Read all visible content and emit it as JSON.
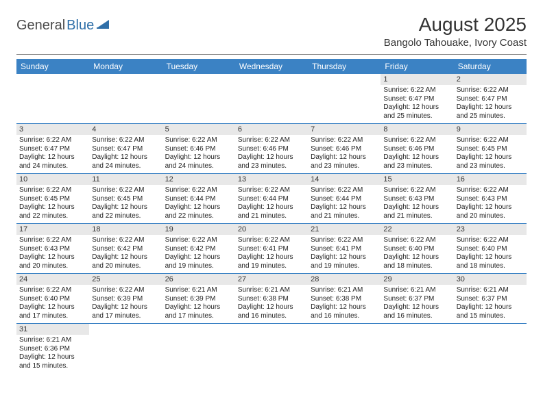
{
  "logo": {
    "general": "General",
    "blue": "Blue"
  },
  "title": "August 2025",
  "subtitle": "Bangolo Tahouake, Ivory Coast",
  "colors": {
    "header_bg": "#3b82c4",
    "header_fg": "#ffffff",
    "daynum_bg": "#e8e8e8",
    "row_border": "#3b82c4",
    "logo_blue": "#2f6fa8"
  },
  "daysOfWeek": [
    "Sunday",
    "Monday",
    "Tuesday",
    "Wednesday",
    "Thursday",
    "Friday",
    "Saturday"
  ],
  "weeks": [
    [
      {
        "n": "",
        "lines": []
      },
      {
        "n": "",
        "lines": []
      },
      {
        "n": "",
        "lines": []
      },
      {
        "n": "",
        "lines": []
      },
      {
        "n": "",
        "lines": []
      },
      {
        "n": "1",
        "lines": [
          "Sunrise: 6:22 AM",
          "Sunset: 6:47 PM",
          "Daylight: 12 hours and 25 minutes."
        ]
      },
      {
        "n": "2",
        "lines": [
          "Sunrise: 6:22 AM",
          "Sunset: 6:47 PM",
          "Daylight: 12 hours and 25 minutes."
        ]
      }
    ],
    [
      {
        "n": "3",
        "lines": [
          "Sunrise: 6:22 AM",
          "Sunset: 6:47 PM",
          "Daylight: 12 hours and 24 minutes."
        ]
      },
      {
        "n": "4",
        "lines": [
          "Sunrise: 6:22 AM",
          "Sunset: 6:47 PM",
          "Daylight: 12 hours and 24 minutes."
        ]
      },
      {
        "n": "5",
        "lines": [
          "Sunrise: 6:22 AM",
          "Sunset: 6:46 PM",
          "Daylight: 12 hours and 24 minutes."
        ]
      },
      {
        "n": "6",
        "lines": [
          "Sunrise: 6:22 AM",
          "Sunset: 6:46 PM",
          "Daylight: 12 hours and 23 minutes."
        ]
      },
      {
        "n": "7",
        "lines": [
          "Sunrise: 6:22 AM",
          "Sunset: 6:46 PM",
          "Daylight: 12 hours and 23 minutes."
        ]
      },
      {
        "n": "8",
        "lines": [
          "Sunrise: 6:22 AM",
          "Sunset: 6:46 PM",
          "Daylight: 12 hours and 23 minutes."
        ]
      },
      {
        "n": "9",
        "lines": [
          "Sunrise: 6:22 AM",
          "Sunset: 6:45 PM",
          "Daylight: 12 hours and 23 minutes."
        ]
      }
    ],
    [
      {
        "n": "10",
        "lines": [
          "Sunrise: 6:22 AM",
          "Sunset: 6:45 PM",
          "Daylight: 12 hours and 22 minutes."
        ]
      },
      {
        "n": "11",
        "lines": [
          "Sunrise: 6:22 AM",
          "Sunset: 6:45 PM",
          "Daylight: 12 hours and 22 minutes."
        ]
      },
      {
        "n": "12",
        "lines": [
          "Sunrise: 6:22 AM",
          "Sunset: 6:44 PM",
          "Daylight: 12 hours and 22 minutes."
        ]
      },
      {
        "n": "13",
        "lines": [
          "Sunrise: 6:22 AM",
          "Sunset: 6:44 PM",
          "Daylight: 12 hours and 21 minutes."
        ]
      },
      {
        "n": "14",
        "lines": [
          "Sunrise: 6:22 AM",
          "Sunset: 6:44 PM",
          "Daylight: 12 hours and 21 minutes."
        ]
      },
      {
        "n": "15",
        "lines": [
          "Sunrise: 6:22 AM",
          "Sunset: 6:43 PM",
          "Daylight: 12 hours and 21 minutes."
        ]
      },
      {
        "n": "16",
        "lines": [
          "Sunrise: 6:22 AM",
          "Sunset: 6:43 PM",
          "Daylight: 12 hours and 20 minutes."
        ]
      }
    ],
    [
      {
        "n": "17",
        "lines": [
          "Sunrise: 6:22 AM",
          "Sunset: 6:43 PM",
          "Daylight: 12 hours and 20 minutes."
        ]
      },
      {
        "n": "18",
        "lines": [
          "Sunrise: 6:22 AM",
          "Sunset: 6:42 PM",
          "Daylight: 12 hours and 20 minutes."
        ]
      },
      {
        "n": "19",
        "lines": [
          "Sunrise: 6:22 AM",
          "Sunset: 6:42 PM",
          "Daylight: 12 hours and 19 minutes."
        ]
      },
      {
        "n": "20",
        "lines": [
          "Sunrise: 6:22 AM",
          "Sunset: 6:41 PM",
          "Daylight: 12 hours and 19 minutes."
        ]
      },
      {
        "n": "21",
        "lines": [
          "Sunrise: 6:22 AM",
          "Sunset: 6:41 PM",
          "Daylight: 12 hours and 19 minutes."
        ]
      },
      {
        "n": "22",
        "lines": [
          "Sunrise: 6:22 AM",
          "Sunset: 6:40 PM",
          "Daylight: 12 hours and 18 minutes."
        ]
      },
      {
        "n": "23",
        "lines": [
          "Sunrise: 6:22 AM",
          "Sunset: 6:40 PM",
          "Daylight: 12 hours and 18 minutes."
        ]
      }
    ],
    [
      {
        "n": "24",
        "lines": [
          "Sunrise: 6:22 AM",
          "Sunset: 6:40 PM",
          "Daylight: 12 hours and 17 minutes."
        ]
      },
      {
        "n": "25",
        "lines": [
          "Sunrise: 6:22 AM",
          "Sunset: 6:39 PM",
          "Daylight: 12 hours and 17 minutes."
        ]
      },
      {
        "n": "26",
        "lines": [
          "Sunrise: 6:21 AM",
          "Sunset: 6:39 PM",
          "Daylight: 12 hours and 17 minutes."
        ]
      },
      {
        "n": "27",
        "lines": [
          "Sunrise: 6:21 AM",
          "Sunset: 6:38 PM",
          "Daylight: 12 hours and 16 minutes."
        ]
      },
      {
        "n": "28",
        "lines": [
          "Sunrise: 6:21 AM",
          "Sunset: 6:38 PM",
          "Daylight: 12 hours and 16 minutes."
        ]
      },
      {
        "n": "29",
        "lines": [
          "Sunrise: 6:21 AM",
          "Sunset: 6:37 PM",
          "Daylight: 12 hours and 16 minutes."
        ]
      },
      {
        "n": "30",
        "lines": [
          "Sunrise: 6:21 AM",
          "Sunset: 6:37 PM",
          "Daylight: 12 hours and 15 minutes."
        ]
      }
    ],
    [
      {
        "n": "31",
        "lines": [
          "Sunrise: 6:21 AM",
          "Sunset: 6:36 PM",
          "Daylight: 12 hours and 15 minutes."
        ]
      },
      {
        "n": "",
        "lines": []
      },
      {
        "n": "",
        "lines": []
      },
      {
        "n": "",
        "lines": []
      },
      {
        "n": "",
        "lines": []
      },
      {
        "n": "",
        "lines": []
      },
      {
        "n": "",
        "lines": []
      }
    ]
  ]
}
